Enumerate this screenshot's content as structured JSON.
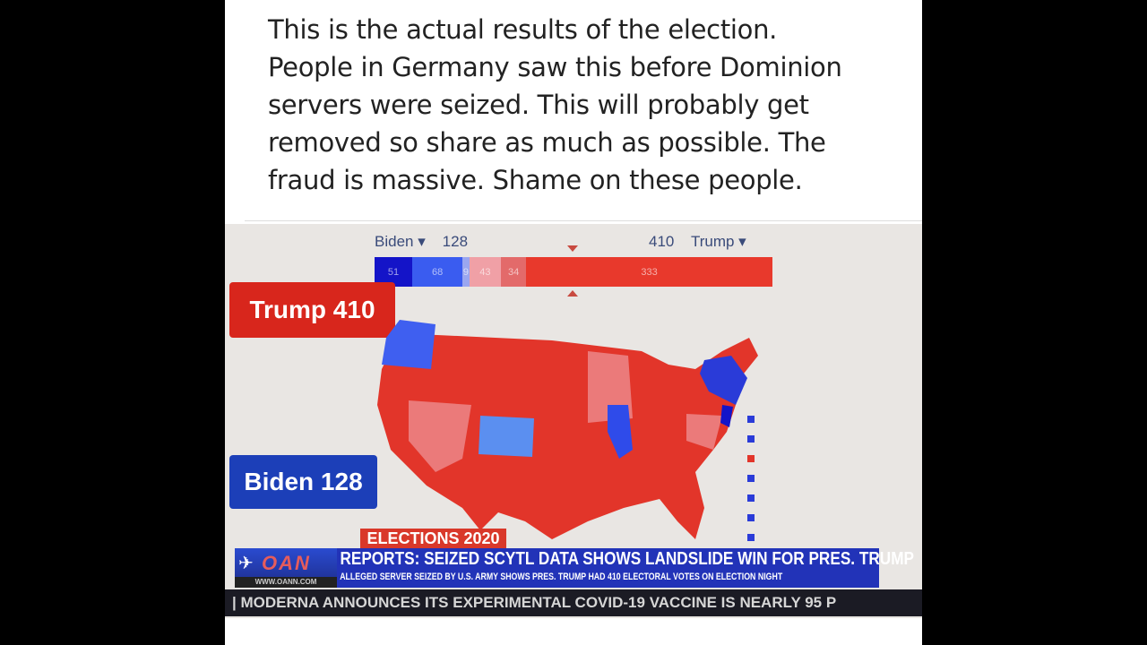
{
  "post": {
    "lines": [
      "This is the actual results of the election.",
      "People in Germany saw this before Dominion",
      "servers were seized. This will probably get",
      "removed so share as much as possible. The",
      "fraud is massive. Shame on these people."
    ]
  },
  "broadcast": {
    "header": {
      "left_name": "Biden ▾",
      "left_total": "128",
      "right_total": "410",
      "right_name": "Trump ▾"
    },
    "bar_segments": [
      {
        "label": "51",
        "value": 51,
        "color": "#1414c8"
      },
      {
        "label": "68",
        "value": 68,
        "color": "#3a5cf0"
      },
      {
        "label": "9",
        "value": 9,
        "color": "#9aa6f0"
      },
      {
        "label": "43",
        "value": 43,
        "color": "#f0a0a6"
      },
      {
        "label": "34",
        "value": 34,
        "color": "#e36a6a"
      },
      {
        "label": "333",
        "value": 333,
        "color": "#e8392c"
      }
    ],
    "trump_badge": "Trump 410",
    "biden_badge": "Biden 128",
    "elections_label": "ELECTIONS 2020",
    "network_logo": "OAN",
    "network_url": "WWW.OANN.COM",
    "headline": "REPORTS: SEIZED SCYTL DATA SHOWS LANDSLIDE WIN FOR PRES. TRUMP",
    "subheadline": "ALLEGED SERVER SEIZED BY U.S. ARMY SHOWS PRES. TRUMP HAD 410 ELECTORAL VOTES ON ELECTION NIGHT",
    "ticker": "| MODERNA ANNOUNCES ITS EXPERIMENTAL COVID-19 VACCINE IS NEARLY 95 P",
    "colors": {
      "trump": "#d8261c",
      "biden": "#1c3fb8",
      "banner": "#2233b8"
    }
  }
}
